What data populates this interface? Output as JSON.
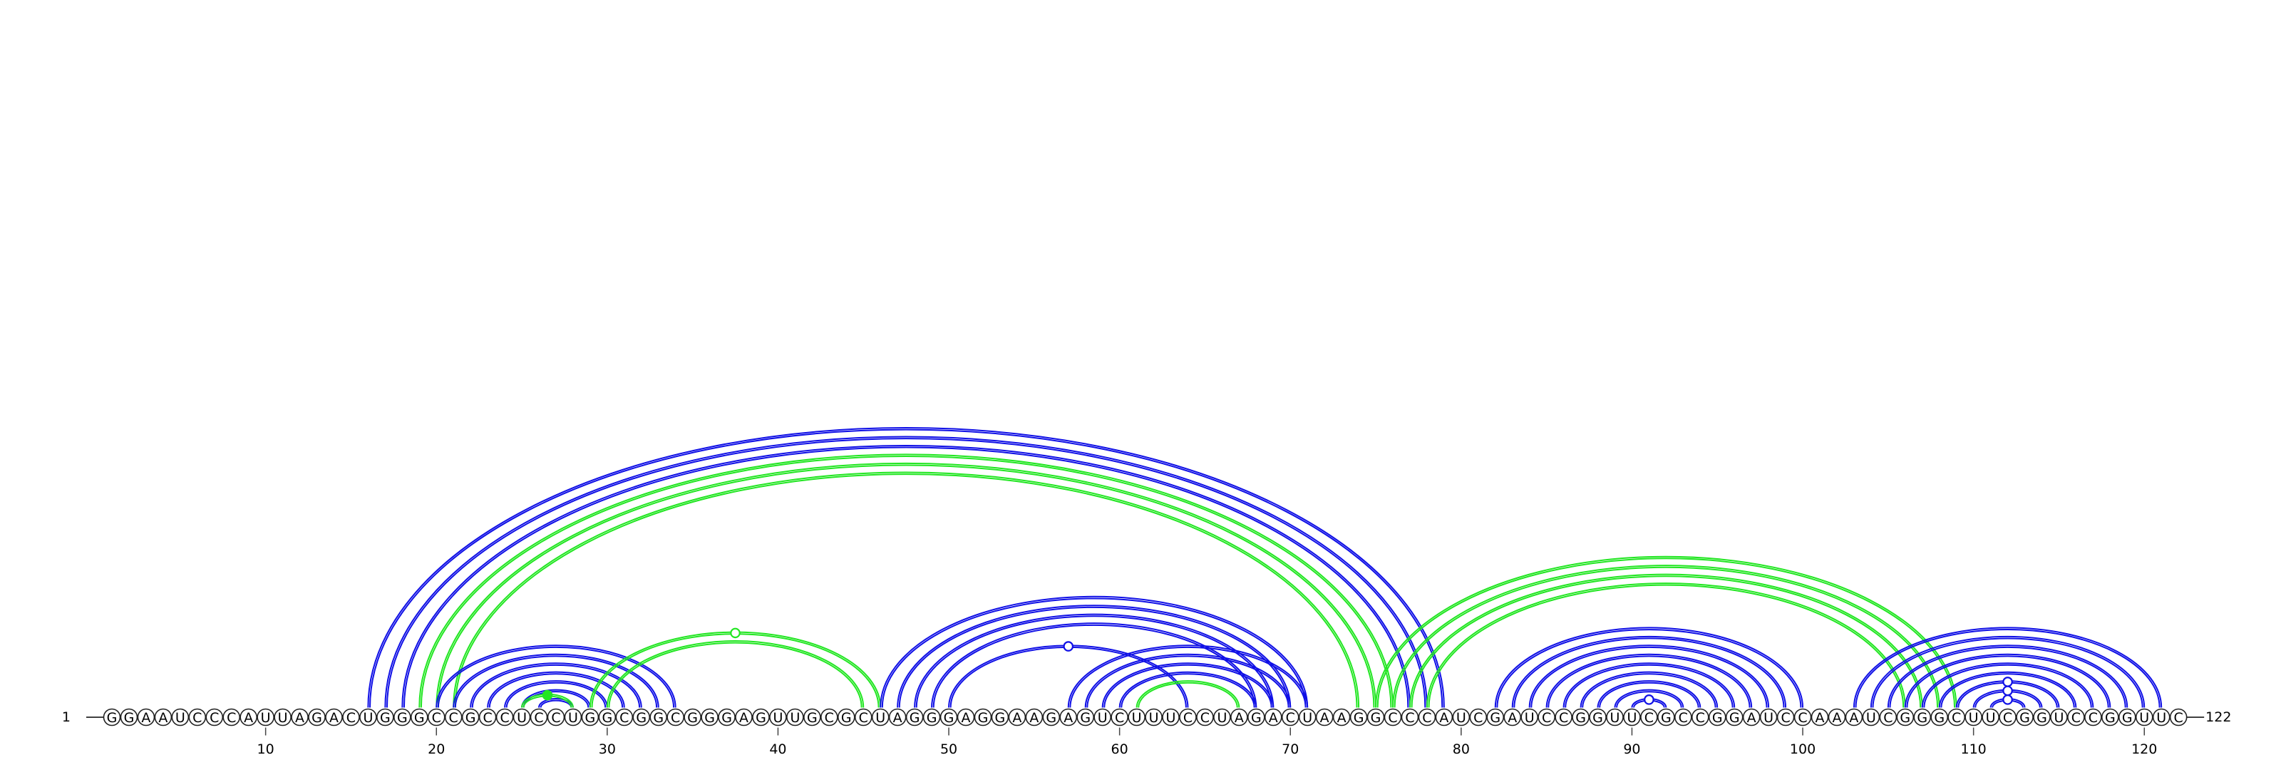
{
  "sequence": "GGAAUCCCAUUAGACUGGGCCGCCUCCUGGCGGCGGGAGUUGCGCUAGGGAGGAAGAGUCUUUCCUAGACUAAGGCCCAUCGAUCCGGUUCGCCGGAUCCAAAUCGGGCUUCGGUCCGGUUC",
  "start_label": "1",
  "end_label": "122",
  "ticks": [
    "10",
    "20",
    "30",
    "40",
    "50",
    "60",
    "70",
    "80",
    "90",
    "100",
    "110",
    "120"
  ],
  "colors": {
    "blue": "#1010e6",
    "green": "#22e622"
  },
  "arcs": [
    {
      "i": 16,
      "j": 79,
      "color": "blue"
    },
    {
      "i": 17,
      "j": 78,
      "color": "blue"
    },
    {
      "i": 18,
      "j": 77,
      "color": "blue"
    },
    {
      "i": 19,
      "j": 76,
      "color": "green"
    },
    {
      "i": 20,
      "j": 75,
      "color": "green"
    },
    {
      "i": 21,
      "j": 74,
      "color": "green"
    },
    {
      "i": 20,
      "j": 34,
      "color": "blue"
    },
    {
      "i": 21,
      "j": 33,
      "color": "blue"
    },
    {
      "i": 22,
      "j": 32,
      "color": "blue"
    },
    {
      "i": 23,
      "j": 31,
      "color": "blue"
    },
    {
      "i": 24,
      "j": 30,
      "color": "blue"
    },
    {
      "i": 25,
      "j": 29,
      "color": "blue"
    },
    {
      "i": 26,
      "j": 28,
      "color": "blue"
    },
    {
      "i": 25,
      "j": 28,
      "color": "green",
      "marker": "filled"
    },
    {
      "i": 29,
      "j": 46,
      "color": "green",
      "marker": "open"
    },
    {
      "i": 30,
      "j": 45,
      "color": "green"
    },
    {
      "i": 46,
      "j": 71,
      "color": "blue"
    },
    {
      "i": 47,
      "j": 70,
      "color": "blue"
    },
    {
      "i": 48,
      "j": 69,
      "color": "blue"
    },
    {
      "i": 49,
      "j": 68,
      "color": "blue"
    },
    {
      "i": 50,
      "j": 64,
      "color": "blue",
      "marker": "open"
    },
    {
      "i": 57,
      "j": 71,
      "color": "blue"
    },
    {
      "i": 58,
      "j": 70,
      "color": "blue"
    },
    {
      "i": 59,
      "j": 69,
      "color": "blue"
    },
    {
      "i": 60,
      "j": 68,
      "color": "blue"
    },
    {
      "i": 61,
      "j": 67,
      "color": "green"
    },
    {
      "i": 75,
      "j": 109,
      "color": "green"
    },
    {
      "i": 76,
      "j": 108,
      "color": "green"
    },
    {
      "i": 77,
      "j": 107,
      "color": "green"
    },
    {
      "i": 78,
      "j": 106,
      "color": "green"
    },
    {
      "i": 82,
      "j": 100,
      "color": "blue"
    },
    {
      "i": 83,
      "j": 99,
      "color": "blue"
    },
    {
      "i": 84,
      "j": 98,
      "color": "blue"
    },
    {
      "i": 85,
      "j": 97,
      "color": "blue"
    },
    {
      "i": 86,
      "j": 96,
      "color": "blue"
    },
    {
      "i": 87,
      "j": 95,
      "color": "blue"
    },
    {
      "i": 88,
      "j": 94,
      "color": "blue"
    },
    {
      "i": 89,
      "j": 93,
      "color": "blue"
    },
    {
      "i": 90,
      "j": 92,
      "color": "blue",
      "marker": "open"
    },
    {
      "i": 103,
      "j": 121,
      "color": "blue"
    },
    {
      "i": 104,
      "j": 120,
      "color": "blue"
    },
    {
      "i": 105,
      "j": 119,
      "color": "blue"
    },
    {
      "i": 106,
      "j": 118,
      "color": "blue"
    },
    {
      "i": 107,
      "j": 117,
      "color": "blue"
    },
    {
      "i": 108,
      "j": 116,
      "color": "blue"
    },
    {
      "i": 109,
      "j": 115,
      "color": "blue",
      "marker": "open"
    },
    {
      "i": 110,
      "j": 114,
      "color": "blue",
      "marker": "open"
    },
    {
      "i": 111,
      "j": 113,
      "color": "blue",
      "marker": "open"
    }
  ]
}
